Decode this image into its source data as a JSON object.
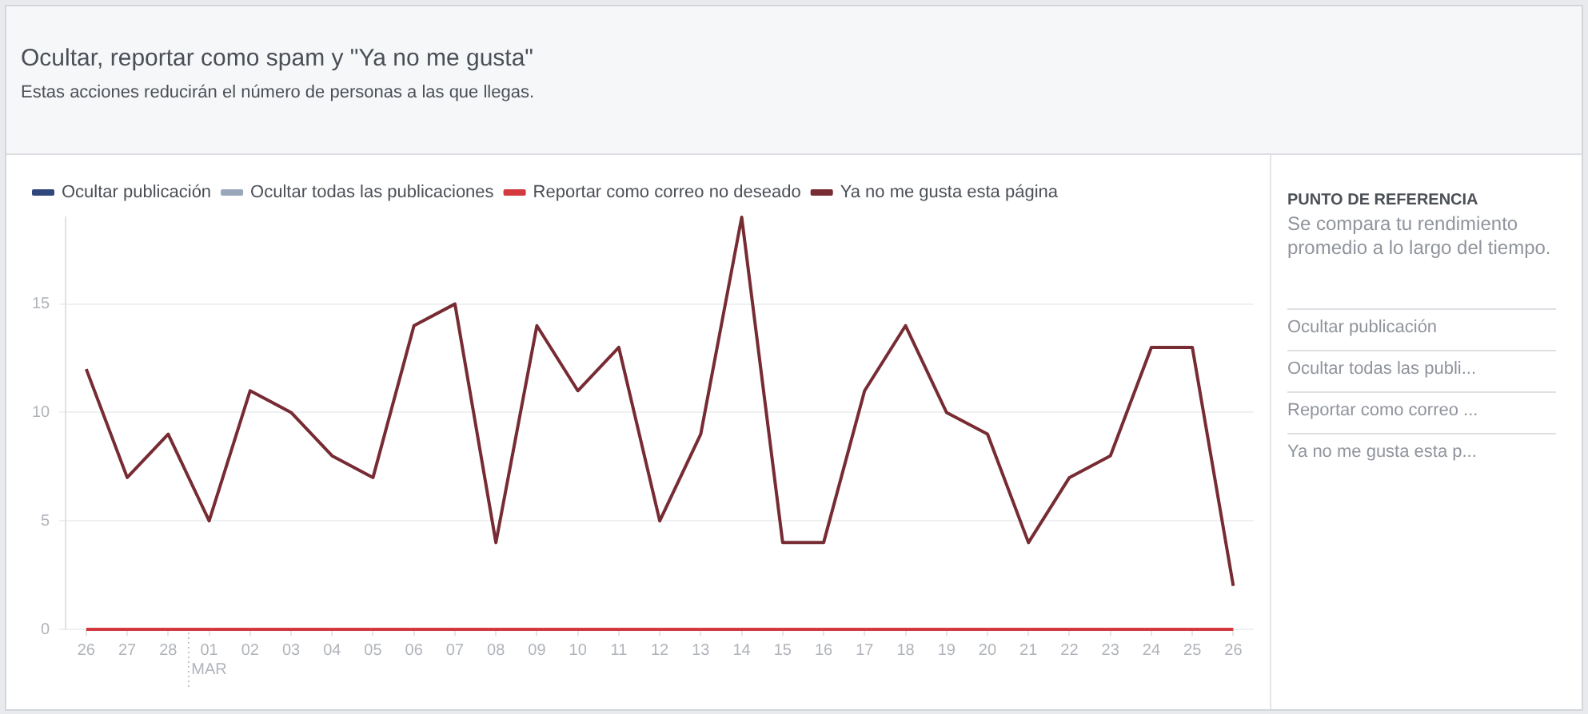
{
  "chart_data": [
    {
      "type": "line",
      "title": "Ocultar, reportar como spam y \"Ya no me gusta\"",
      "subtitle": "Estas acciones reducirán el número de personas a las que llegas.",
      "categories": [
        "26",
        "27",
        "28",
        "01\nMAR",
        "02",
        "03",
        "04",
        "05",
        "06",
        "07",
        "08",
        "09",
        "10",
        "11",
        "12",
        "13",
        "14",
        "15",
        "16",
        "17",
        "18",
        "19",
        "20",
        "21",
        "22",
        "23",
        "24",
        "25",
        "26"
      ],
      "series": [
        {
          "name": "Ocultar publicación",
          "color": "#2f477a",
          "values": [
            null,
            null,
            null,
            null,
            null,
            null,
            null,
            null,
            null,
            null,
            null,
            null,
            null,
            null,
            null,
            null,
            null,
            null,
            null,
            null,
            null,
            null,
            null,
            null,
            null,
            null,
            null,
            null,
            null
          ]
        },
        {
          "name": "Ocultar todas las publicaciones",
          "color": "#9aa7bb",
          "values": [
            null,
            null,
            null,
            null,
            null,
            null,
            null,
            null,
            null,
            null,
            null,
            null,
            null,
            null,
            null,
            null,
            null,
            null,
            null,
            null,
            null,
            null,
            null,
            null,
            null,
            null,
            null,
            null,
            null
          ]
        },
        {
          "name": "Reportar como correo no deseado",
          "color": "#d23a3f",
          "values": [
            0,
            0,
            0,
            0,
            0,
            0,
            0,
            0,
            0,
            0,
            0,
            0,
            0,
            0,
            0,
            0,
            0,
            0,
            0,
            0,
            0,
            0,
            0,
            0,
            0,
            0,
            0,
            0,
            0
          ]
        },
        {
          "name": "Ya no me gusta esta página",
          "color": "#772b33",
          "values": [
            12,
            7,
            9,
            5,
            11,
            10,
            8,
            7,
            14,
            15,
            4,
            14,
            11,
            13,
            5,
            9,
            19,
            4,
            4,
            11,
            14,
            10,
            9,
            4,
            7,
            8,
            13,
            13,
            2
          ]
        }
      ],
      "ylim": [
        0,
        19
      ],
      "yticks": [
        0,
        5,
        10,
        15
      ],
      "grid": "y",
      "legend": "top left",
      "marker": "none",
      "line_style": "solid"
    },
    {
      "type": "other",
      "title": "PUNTO DE REFERENCIA",
      "subtitle": "Se compara tu rendimiento promedio a lo largo del tiempo.",
      "annotations": [
        "Ocultar publicación",
        "Ocultar todas las publi...",
        "Reportar como correo ...",
        "Ya no me gusta esta p..."
      ]
    }
  ]
}
